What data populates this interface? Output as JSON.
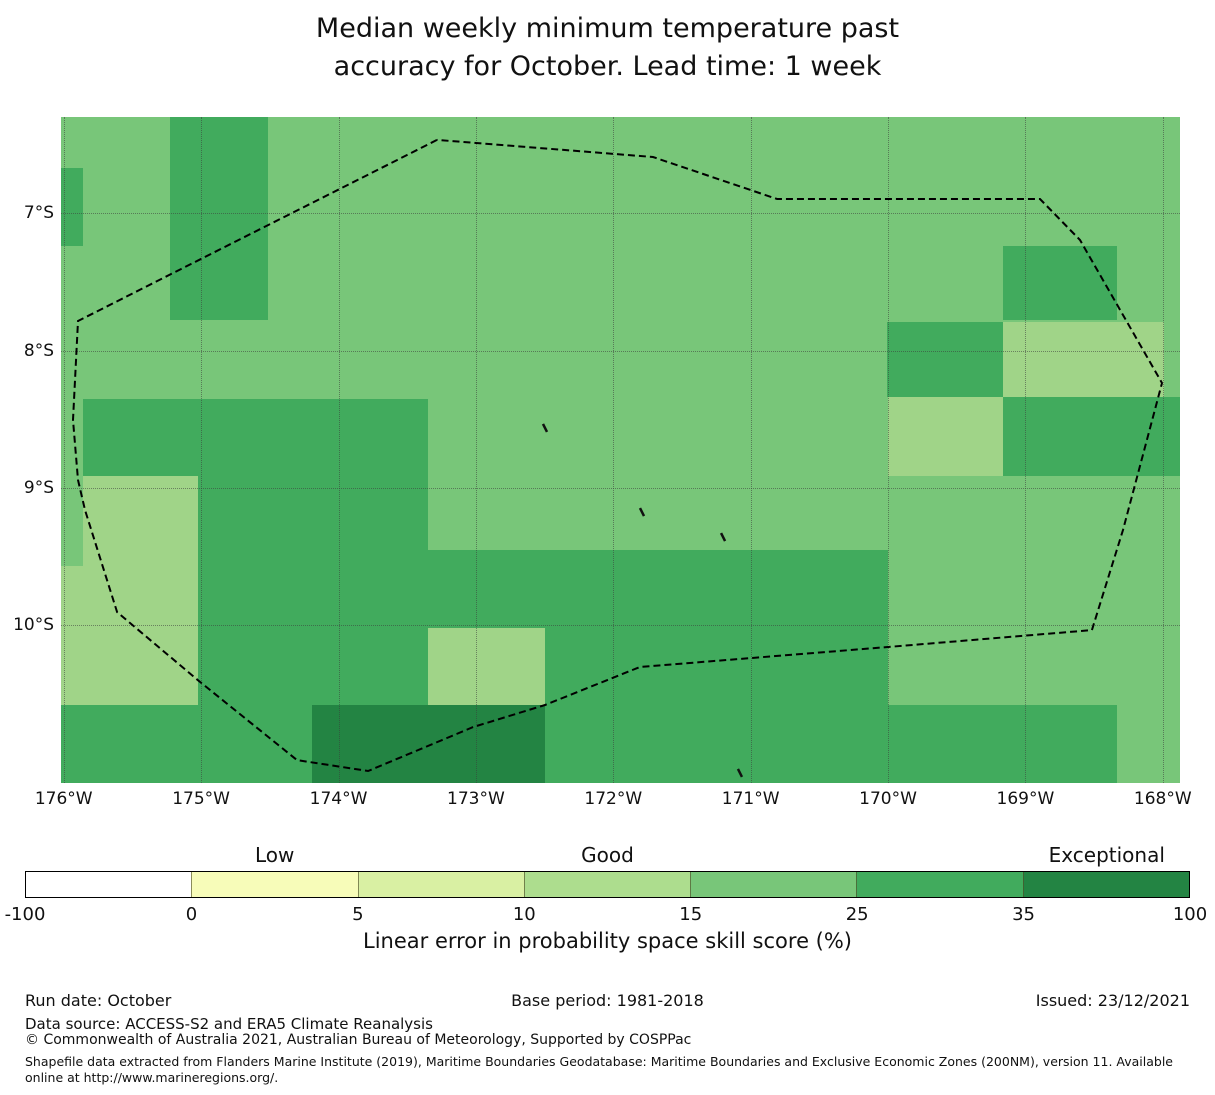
{
  "title": {
    "line1": "Median weekly minimum temperature past",
    "line2": "accuracy for October. Lead time: 1 week"
  },
  "chart_data": {
    "type": "heatmap",
    "description": "Gridded skill-score map (linear error in probability space, %) over a Pacific EEZ region, with a dashed maritime boundary overlay",
    "extent": {
      "lon_west": 176.02,
      "lon_east": 167.875,
      "lat_north": 6.3,
      "lat_south": 11.147
    },
    "x_axis": {
      "tick_labels": [
        "176°W",
        "175°W",
        "174°W",
        "173°W",
        "172°W",
        "171°W",
        "170°W",
        "169°W",
        "168°W"
      ],
      "tick_lons": [
        176,
        175,
        174,
        173,
        172,
        171,
        170,
        169,
        168
      ]
    },
    "y_axis": {
      "tick_labels": [
        "7°S",
        "8°S",
        "9°S",
        "10°S"
      ],
      "tick_lats": [
        7,
        8,
        9,
        10
      ]
    },
    "grid": true,
    "palette": {
      "10-15": "#a0d488",
      "15-25": "#78c679",
      "25-35": "#41ab5d",
      "35-100": "#238443"
    },
    "base_level": "15-25",
    "cells": [
      {
        "lon0": 175.86,
        "lon1": 175.02,
        "lat0": 8.91,
        "lat1": 9.57,
        "level": "10-15"
      },
      {
        "lon0": 176.02,
        "lon1": 175.02,
        "lat0": 9.57,
        "lat1": 10.58,
        "level": "10-15"
      },
      {
        "lon0": 173.36,
        "lon1": 172.5,
        "lat0": 10.02,
        "lat1": 10.59,
        "level": "10-15"
      },
      {
        "lon0": 169.16,
        "lon1": 167.99,
        "lat0": 7.79,
        "lat1": 8.34,
        "level": "10-15"
      },
      {
        "lon0": 170.0,
        "lon1": 169.16,
        "lat0": 8.34,
        "lat1": 8.91,
        "level": "10-15"
      },
      {
        "lon0": 176.02,
        "lon1": 175.86,
        "lat0": 6.67,
        "lat1": 7.24,
        "level": "25-35"
      },
      {
        "lon0": 175.23,
        "lon1": 174.51,
        "lat0": 6.3,
        "lat1": 7.78,
        "level": "25-35"
      },
      {
        "lon0": 175.86,
        "lon1": 173.35,
        "lat0": 8.35,
        "lat1": 8.91,
        "level": "25-35"
      },
      {
        "lon0": 175.02,
        "lon1": 173.35,
        "lat0": 8.91,
        "lat1": 10.6,
        "level": "25-35"
      },
      {
        "lon0": 173.35,
        "lon1": 170.0,
        "lat0": 9.45,
        "lat1": 10.02,
        "level": "25-35"
      },
      {
        "lon0": 172.5,
        "lon1": 170.0,
        "lat0": 10.02,
        "lat1": 11.15,
        "level": "25-35"
      },
      {
        "lon0": 170.0,
        "lon1": 168.33,
        "lat0": 10.58,
        "lat1": 11.15,
        "level": "25-35"
      },
      {
        "lon0": 176.02,
        "lon1": 174.19,
        "lat0": 10.58,
        "lat1": 11.15,
        "level": "25-35"
      },
      {
        "lon0": 169.16,
        "lon1": 168.33,
        "lat0": 7.24,
        "lat1": 7.78,
        "level": "25-35"
      },
      {
        "lon0": 170.01,
        "lon1": 169.16,
        "lat0": 7.79,
        "lat1": 8.34,
        "level": "25-35"
      },
      {
        "lon0": 169.16,
        "lon1": 167.875,
        "lat0": 8.34,
        "lat1": 8.91,
        "level": "25-35"
      },
      {
        "lon0": 174.19,
        "lon1": 172.5,
        "lat0": 10.58,
        "lat1": 11.15,
        "level": "35-100"
      }
    ],
    "eez_boundary": [
      [
        173.283,
        6.467
      ],
      [
        175.896,
        7.785
      ],
      [
        175.933,
        8.505
      ],
      [
        175.896,
        8.942
      ],
      [
        175.845,
        9.16
      ],
      [
        175.612,
        9.903
      ],
      [
        175.016,
        10.405
      ],
      [
        174.302,
        10.98
      ],
      [
        173.785,
        11.06
      ],
      [
        173.021,
        10.74
      ],
      [
        172.497,
        10.579
      ],
      [
        171.806,
        10.303
      ],
      [
        170.001,
        10.157
      ],
      [
        168.516,
        10.034
      ],
      [
        168.29,
        9.306
      ],
      [
        168.006,
        8.236
      ],
      [
        168.603,
        7.195
      ],
      [
        168.894,
        6.897
      ],
      [
        169.382,
        6.897
      ],
      [
        170.808,
        6.897
      ],
      [
        171.711,
        6.591
      ],
      [
        173.283,
        6.467
      ]
    ],
    "eez_style": {
      "color": "#000000",
      "dash": "7 4",
      "width": 2
    },
    "islets": [
      [
        172.497,
        8.563
      ],
      [
        171.791,
        9.175
      ],
      [
        171.201,
        9.357
      ],
      [
        171.078,
        11.074
      ]
    ]
  },
  "colorbar": {
    "segment_colors": [
      "#ffffff",
      "#f7fcb9",
      "#d9f0a3",
      "#addd8e",
      "#78c679",
      "#41ab5d",
      "#238443"
    ],
    "tick_labels": [
      "-100",
      "0",
      "5",
      "10",
      "15",
      "25",
      "35",
      "100"
    ],
    "zone_labels": [
      {
        "text": "Low",
        "segment_index": 1
      },
      {
        "text": "Good",
        "segment_index": 3
      },
      {
        "text": "Exceptional",
        "segment_index": 6
      }
    ],
    "axis_label": "Linear error in probability space skill score (%)"
  },
  "footer": {
    "run_date": "Run date: October",
    "base_period": "Base period: 1981-2018",
    "issued": "Issued: 23/12/2021",
    "data_source": "Data source: ACCESS-S2 and ERA5 Climate Reanalysis",
    "copyright": "© Commonwealth of Australia 2021, Australian Bureau of Meteorology, Supported by COSPPac",
    "shapefile_note": "Shapefile data extracted from Flanders Marine Institute (2019), Maritime Boundaries Geodatabase: Maritime Boundaries and Exclusive Economic Zones (200NM), version 11. Available online at http://www.marineregions.org/."
  }
}
